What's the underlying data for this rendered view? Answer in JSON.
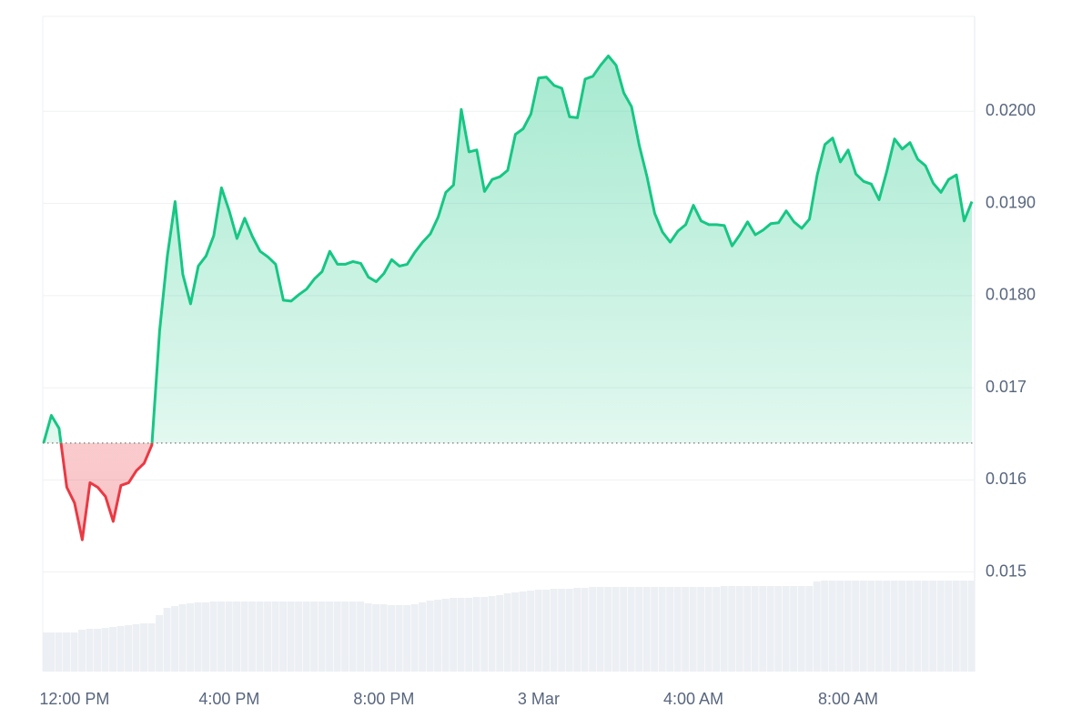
{
  "chart_data": {
    "type": "line",
    "x": [
      11.2,
      11.4,
      11.6,
      11.8,
      12.0,
      12.2,
      12.4,
      12.6,
      12.8,
      13.0,
      13.2,
      13.4,
      13.6,
      13.8,
      14.0,
      14.2,
      14.4,
      14.6,
      14.8,
      15.0,
      15.2,
      15.4,
      15.6,
      15.8,
      16.0,
      16.2,
      16.4,
      16.6,
      16.8,
      17.0,
      17.2,
      17.4,
      17.6,
      17.8,
      18.0,
      18.2,
      18.4,
      18.6,
      18.8,
      19.0,
      19.2,
      19.4,
      19.6,
      19.8,
      20.0,
      20.2,
      20.4,
      20.6,
      20.8,
      21.0,
      21.2,
      21.4,
      21.6,
      21.8,
      22.0,
      22.2,
      22.4,
      22.6,
      22.8,
      23.0,
      23.2,
      23.4,
      23.6,
      23.8,
      24.0,
      24.2,
      24.4,
      24.6,
      24.8,
      25.0,
      25.2,
      25.4,
      25.6,
      25.8,
      26.0,
      26.2,
      26.4,
      26.6,
      26.8,
      27.0,
      27.2,
      27.4,
      27.6,
      27.8,
      28.0,
      28.2,
      28.4,
      28.6,
      28.8,
      29.0,
      29.2,
      29.4,
      29.6,
      29.8,
      30.0,
      30.2,
      30.4,
      30.6,
      30.8,
      31.0,
      31.2,
      31.4,
      31.6,
      31.8,
      32.0,
      32.2,
      32.4,
      32.6,
      32.8,
      33.0,
      33.2,
      33.4,
      33.6,
      33.8,
      34.0,
      34.2,
      34.4,
      34.6,
      34.8,
      35.0,
      35.2
    ],
    "series": [
      {
        "color": "#16c784",
        "down_color": "#ea3943",
        "values": [
          0.0164,
          0.0167,
          0.01656,
          0.01592,
          0.01575,
          0.01535,
          0.01597,
          0.01592,
          0.01582,
          0.01555,
          0.01594,
          0.01597,
          0.0161,
          0.01618,
          0.01638,
          0.01762,
          0.01843,
          0.01902,
          0.01823,
          0.01791,
          0.01832,
          0.01843,
          0.01865,
          0.01917,
          0.01892,
          0.01862,
          0.01884,
          0.01864,
          0.01848,
          0.01842,
          0.01834,
          0.01795,
          0.01794,
          0.01801,
          0.01807,
          0.01818,
          0.01826,
          0.01848,
          0.01834,
          0.01834,
          0.01837,
          0.01835,
          0.0182,
          0.01815,
          0.01824,
          0.01839,
          0.01832,
          0.01834,
          0.01847,
          0.01858,
          0.01867,
          0.01885,
          0.01912,
          0.0192,
          0.02002,
          0.01956,
          0.01958,
          0.01913,
          0.01926,
          0.01929,
          0.01936,
          0.01975,
          0.01981,
          0.01997,
          0.02036,
          0.02037,
          0.02028,
          0.02025,
          0.01994,
          0.01993,
          0.02035,
          0.02038,
          0.0205,
          0.0206,
          0.0205,
          0.0202,
          0.02005,
          0.01963,
          0.01929,
          0.01889,
          0.01869,
          0.01858,
          0.0187,
          0.01877,
          0.01898,
          0.01881,
          0.01877,
          0.01877,
          0.01876,
          0.01854,
          0.01866,
          0.0188,
          0.01866,
          0.01871,
          0.01878,
          0.01879,
          0.01892,
          0.0188,
          0.01873,
          0.01883,
          0.01931,
          0.01964,
          0.01971,
          0.01945,
          0.01958,
          0.01932,
          0.01924,
          0.01921,
          0.01904,
          0.01935,
          0.0197,
          0.01959,
          0.01966,
          0.01948,
          0.01941,
          0.01922,
          0.01912,
          0.01926,
          0.01931,
          0.01881,
          0.01902
        ]
      },
      {
        "color": "#eceff3",
        "axis": "y2",
        "values": [
          43,
          43,
          43,
          43,
          43,
          46,
          47,
          47,
          48,
          49,
          50,
          51,
          52,
          53,
          53,
          62,
          70,
          72,
          74,
          75,
          76,
          76,
          77,
          77,
          77,
          77,
          77,
          77,
          77,
          77,
          77,
          77,
          77,
          77,
          77,
          77,
          77,
          77,
          77,
          77,
          77,
          77,
          75,
          74,
          74,
          73,
          73,
          73,
          74,
          76,
          78,
          79,
          80,
          81,
          81,
          81,
          82,
          82,
          83,
          84,
          86,
          87,
          88,
          89,
          90,
          90,
          91,
          91,
          91,
          92,
          92,
          93,
          93,
          93,
          93,
          93,
          93,
          93,
          93,
          93,
          93,
          93,
          93,
          93,
          93,
          93,
          93,
          93,
          94,
          94,
          94,
          94,
          94,
          94,
          94,
          94,
          94,
          94,
          94,
          94,
          99,
          100,
          100,
          100,
          100,
          100,
          100,
          100,
          100,
          100,
          100,
          100,
          100,
          100,
          100,
          100,
          100,
          100,
          100,
          100,
          100
        ]
      }
    ],
    "baseline": 0.0164,
    "xlim": [
      11.18,
      35.27
    ],
    "xticks": [
      {
        "value": 12,
        "label": "12:00 PM"
      },
      {
        "value": 16,
        "label": "4:00 PM"
      },
      {
        "value": 20,
        "label": "8:00 PM"
      },
      {
        "value": 24,
        "label": "3 Mar"
      },
      {
        "value": 28,
        "label": "4:00 AM"
      },
      {
        "value": 32,
        "label": "8:00 AM"
      }
    ],
    "ylim": [
      0.01392,
      0.02103
    ],
    "yticks": [
      0.015,
      0.016,
      0.017,
      {
        "value": 0.018,
        "label": "0.0180"
      },
      {
        "value": 0.019,
        "label": "0.0190"
      },
      {
        "value": 0.02,
        "label": "0.0200"
      }
    ],
    "y2lim": [
      0,
      720
    ],
    "grid": true
  }
}
